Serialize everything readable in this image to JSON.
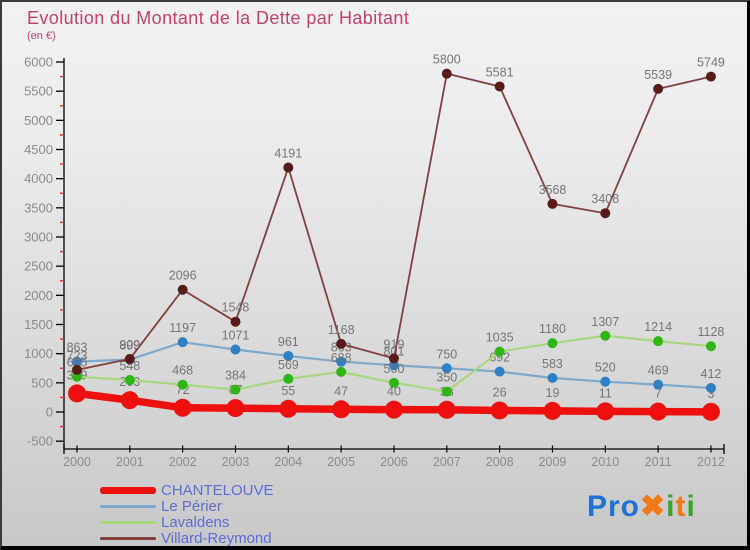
{
  "header": {
    "title": "Evolution du Montant de la Dette par Habitant",
    "subtitle": "(en €)"
  },
  "chart_data": {
    "type": "line",
    "x": [
      2000,
      2001,
      2002,
      2003,
      2004,
      2005,
      2006,
      2007,
      2008,
      2009,
      2010,
      2011,
      2012
    ],
    "series": [
      {
        "name": "CHANTELOUVE",
        "line_color": "#ee0f0f",
        "dot_color": "#ee0f0f",
        "line_width": 7.5,
        "dot_radius": 9,
        "values": [
          319,
          203,
          72,
          67,
          55,
          47,
          40,
          38,
          26,
          19,
          11,
          7,
          3
        ]
      },
      {
        "name": "Le Périer",
        "line_color": "#7fa9cc",
        "dot_color": "#2e7fc4",
        "line_width": 2.2,
        "dot_radius": 5,
        "values": [
          863,
          899,
          1197,
          1071,
          961,
          863,
          801,
          750,
          692,
          583,
          520,
          469,
          412
        ]
      },
      {
        "name": "Lavaldens",
        "line_color": "#a4da7d",
        "dot_color": "#30b517",
        "line_width": 2.2,
        "dot_radius": 5,
        "values": [
          605,
          548,
          468,
          384,
          569,
          688,
          500,
          350,
          1035,
          1180,
          1307,
          1214,
          1128
        ]
      },
      {
        "name": "Villard-Reymond",
        "line_color": "#83403a",
        "dot_color": "#571c18",
        "line_width": 1.8,
        "dot_radius": 5,
        "values": [
          723,
          909,
          2096,
          1548,
          4191,
          1168,
          919,
          5800,
          5581,
          3568,
          3408,
          5539,
          5749
        ]
      }
    ],
    "ylim": [
      -500,
      6000
    ],
    "y_major_ticks": [
      6000,
      5500,
      5000,
      4500,
      4000,
      3500,
      3000,
      2500,
      2000,
      1500,
      1000,
      500,
      0,
      -500
    ],
    "y_minor_ticks": [
      5750,
      5250,
      4750,
      4250,
      3750,
      3250,
      2750,
      2250,
      1750,
      1250,
      750,
      250,
      -250
    ],
    "grid": false,
    "legend_position": "bottom-left",
    "colors": {
      "axis": "#000000",
      "tick_minor": "#f42b1e",
      "axis_label": "#8b8b8b",
      "value_label": "#757575"
    }
  },
  "logo": {
    "segments": [
      {
        "text": "Pro",
        "color": "#1e73d2"
      },
      {
        "text": "✖",
        "color": "#f07a18"
      },
      {
        "text": "i",
        "color": "#3ba32a"
      },
      {
        "text": "t",
        "color": "#f07a18"
      },
      {
        "text": "i",
        "color": "#3ba32a"
      }
    ]
  }
}
